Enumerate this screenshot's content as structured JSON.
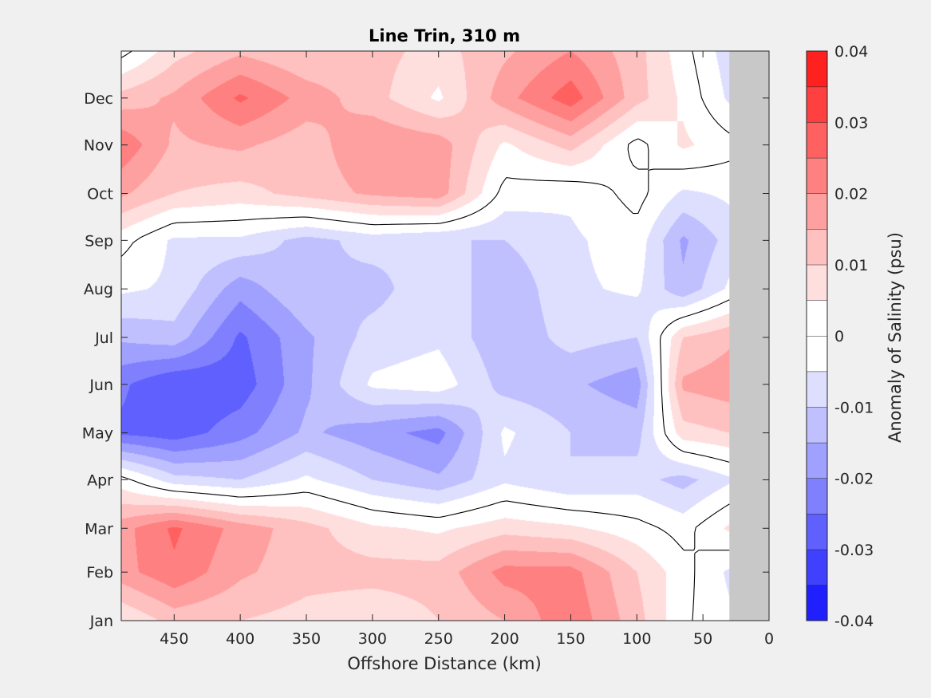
{
  "chart_data": {
    "type": "heatmap",
    "title": "Line Trin, 310 m",
    "xlabel": "Offshore Distance (km)",
    "ylabel": "",
    "xlim": [
      490,
      0
    ],
    "x_reversed": true,
    "x_ticks": [
      450,
      400,
      350,
      300,
      250,
      200,
      150,
      100,
      50,
      0
    ],
    "y_ticks": [
      "Jan",
      "Feb",
      "Mar",
      "Apr",
      "May",
      "Jun",
      "Jul",
      "Aug",
      "Sep",
      "Oct",
      "Nov",
      "Dec"
    ],
    "y_tick_days": [
      1,
      32,
      60,
      91,
      121,
      152,
      182,
      213,
      244,
      274,
      305,
      335
    ],
    "ylim_days": [
      1,
      365
    ],
    "no_data_region_km": [
      0,
      30
    ],
    "no_data_color": "#c8c8c8",
    "zero_contour_color": "#000000",
    "colorbar": {
      "label": "Anomaly of Salinity (psu)",
      "range": [
        -0.04,
        0.04
      ],
      "tick_labels": [
        "0.04",
        "0.03",
        "0.02",
        "0.01",
        "0",
        "-0.01",
        "-0.02",
        "-0.03",
        "-0.04"
      ],
      "tick_values": [
        0.04,
        0.03,
        0.02,
        0.01,
        0,
        -0.01,
        -0.02,
        -0.03,
        -0.04
      ],
      "levels": [
        -0.04,
        -0.035,
        -0.03,
        -0.025,
        -0.02,
        -0.015,
        -0.01,
        -0.005,
        0,
        0.005,
        0.01,
        0.015,
        0.02,
        0.025,
        0.03,
        0.035,
        0.04
      ],
      "colors": [
        "#0000ff",
        "#2020ff",
        "#4040ff",
        "#6060ff",
        "#8080ff",
        "#a0a0ff",
        "#c0c0ff",
        "#dedeff",
        "#ffffff",
        "#ffffff",
        "#ffdede",
        "#ffc0c0",
        "#ffa0a0",
        "#ff8080",
        "#ff6060",
        "#ff4040",
        "#ff2020",
        "#ff0000"
      ]
    },
    "field": {
      "x_km": [
        490,
        450,
        400,
        350,
        300,
        250,
        200,
        150,
        100,
        65,
        30
      ],
      "y_days": [
        1,
        32,
        60,
        91,
        121,
        152,
        182,
        213,
        244,
        274,
        305,
        335,
        365
      ],
      "values": [
        [
          0.005,
          0.012,
          0.01,
          0.008,
          0.006,
          0.01,
          0.015,
          0.024,
          0.012,
          0.001,
          -0.004
        ],
        [
          0.018,
          0.024,
          0.016,
          0.012,
          0.012,
          0.012,
          0.022,
          0.022,
          0.01,
          0.002,
          -0.006
        ],
        [
          0.018,
          0.026,
          0.018,
          0.012,
          0.006,
          0.004,
          0.008,
          0.006,
          0.002,
          -0.002,
          0.006
        ],
        [
          0.002,
          -0.008,
          -0.01,
          -0.004,
          -0.01,
          -0.014,
          -0.006,
          -0.01,
          -0.008,
          -0.012,
          -0.006
        ],
        [
          -0.026,
          -0.028,
          -0.022,
          -0.014,
          -0.018,
          -0.022,
          -0.004,
          -0.01,
          -0.012,
          0.008,
          0.01
        ],
        [
          -0.024,
          -0.03,
          -0.028,
          -0.016,
          -0.004,
          -0.002,
          -0.012,
          -0.014,
          -0.018,
          0.016,
          0.018
        ],
        [
          -0.014,
          -0.012,
          -0.026,
          -0.016,
          -0.008,
          -0.006,
          -0.014,
          -0.008,
          -0.01,
          0.01,
          0.014
        ],
        [
          -0.004,
          -0.006,
          -0.018,
          -0.01,
          -0.012,
          -0.006,
          -0.014,
          -0.006,
          -0.004,
          -0.014,
          -0.004
        ],
        [
          0.002,
          -0.006,
          -0.006,
          -0.012,
          -0.008,
          -0.01,
          -0.01,
          -0.006,
          -0.002,
          -0.016,
          -0.008
        ],
        [
          0.016,
          0.01,
          0.008,
          0.012,
          0.016,
          0.018,
          -0.002,
          -0.004,
          0.002,
          -0.006,
          -0.004
        ],
        [
          0.024,
          0.014,
          0.016,
          0.012,
          0.02,
          0.018,
          0.004,
          0.012,
          -0.002,
          0.006,
          0.002
        ],
        [
          0.012,
          0.016,
          0.026,
          0.018,
          0.012,
          0.004,
          0.018,
          0.028,
          0.012,
          0.004,
          -0.006
        ],
        [
          -0.002,
          0.008,
          0.014,
          0.01,
          0.012,
          0.008,
          0.014,
          0.02,
          0.012,
          0.002,
          -0.008
        ]
      ]
    }
  }
}
